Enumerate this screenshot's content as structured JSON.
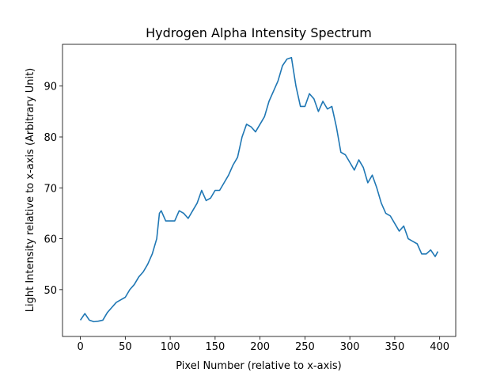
{
  "chart_data": {
    "type": "line",
    "title": "Hydrogen Alpha Intensity Spectrum",
    "x_label": "Pixel Number (relative to x-axis)",
    "y_label": "Light Intensity relative to x-axis (Arbitrary Unit)",
    "x": [
      0,
      5,
      10,
      15,
      20,
      25,
      30,
      35,
      40,
      45,
      50,
      55,
      60,
      65,
      70,
      75,
      80,
      85,
      88,
      90,
      95,
      100,
      105,
      110,
      115,
      120,
      125,
      130,
      135,
      140,
      145,
      150,
      155,
      160,
      165,
      170,
      175,
      180,
      185,
      190,
      195,
      200,
      205,
      210,
      215,
      220,
      225,
      230,
      235,
      240,
      245,
      250,
      255,
      260,
      265,
      270,
      275,
      280,
      285,
      290,
      295,
      300,
      305,
      310,
      315,
      320,
      325,
      330,
      335,
      340,
      345,
      350,
      355,
      360,
      365,
      370,
      375,
      380,
      385,
      390,
      395,
      398
    ],
    "series": [
      {
        "color": "#1f77b4",
        "values": [
          44,
          45.3,
          44,
          43.7,
          43.8,
          44,
          45.5,
          46.5,
          47.5,
          48,
          48.5,
          50,
          51,
          52.5,
          53.5,
          55,
          57,
          60,
          65,
          65.5,
          63.5,
          63.5,
          63.5,
          65.5,
          65,
          64,
          65.5,
          67,
          69.5,
          67.5,
          68,
          69.5,
          69.5,
          71,
          72.5,
          74.5,
          76,
          80,
          82.5,
          82,
          81,
          82.5,
          84,
          87,
          89,
          91,
          94,
          95.3,
          95.6,
          90,
          86,
          86,
          88.5,
          87.5,
          85,
          87,
          85.5,
          86,
          82,
          77,
          76.5,
          75,
          73.5,
          75.5,
          74,
          71,
          72.5,
          70,
          67,
          65,
          64.5,
          63,
          61.5,
          62.5,
          60,
          59.5,
          59,
          57,
          57,
          57.8,
          56.5,
          57.5
        ]
      }
    ],
    "xlim": [
      -19.9,
      417.9
    ],
    "ylim": [
      40.8,
      98.2
    ],
    "xticks": [
      0,
      50,
      100,
      150,
      200,
      250,
      300,
      350,
      400
    ],
    "yticks": [
      50,
      60,
      70,
      80,
      90
    ]
  }
}
